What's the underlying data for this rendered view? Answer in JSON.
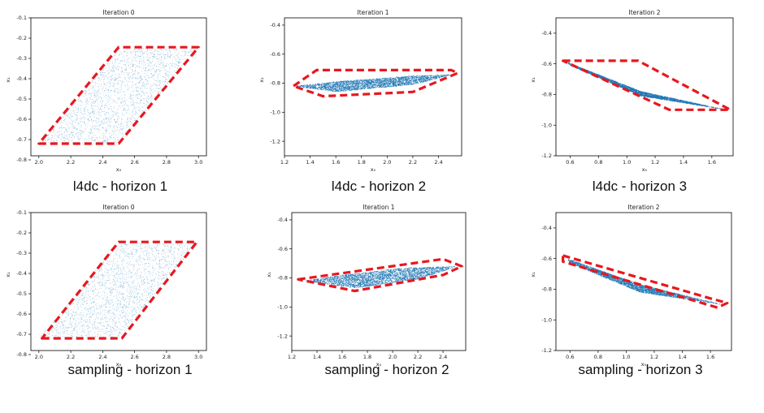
{
  "page": {
    "background": "#ffffff"
  },
  "colors": {
    "points": "#1f77b4",
    "polygon": "#e8171f",
    "axes": "#000000"
  },
  "chart_data": [
    {
      "type": "scatter",
      "title": "Iteration 0",
      "xlabel": "x₀",
      "ylabel": "x₁",
      "caption": "l4dc - horizon 1",
      "xlim": [
        1.95,
        3.05
      ],
      "ylim": [
        -0.78,
        -0.1
      ],
      "xticks": [
        "2.0",
        "2.2",
        "2.4",
        "2.6",
        "2.8",
        "3.0"
      ],
      "xtick_values": [
        2.0,
        2.2,
        2.4,
        2.6,
        2.8,
        3.0
      ],
      "yticks": [
        "-0.1",
        "-0.2",
        "-0.3",
        "-0.4",
        "-0.5",
        "-0.6",
        "-0.7",
        "-0.8"
      ],
      "ytick_values": [
        -0.1,
        -0.2,
        -0.3,
        -0.4,
        -0.5,
        -0.6,
        -0.7,
        -0.8
      ],
      "scatter_region": [
        [
          2.0,
          -0.72
        ],
        [
          2.5,
          -0.72
        ],
        [
          3.0,
          -0.25
        ],
        [
          2.5,
          -0.25
        ]
      ],
      "scatter_density": "sparse",
      "polygon": [
        [
          2.0,
          -0.72
        ],
        [
          2.5,
          -0.72
        ],
        [
          3.0,
          -0.245
        ],
        [
          2.5,
          -0.245
        ]
      ],
      "grid": false
    },
    {
      "type": "scatter",
      "title": "Iteration 1",
      "xlabel": "x₀",
      "ylabel": "x₁",
      "caption": "l4dc - horizon 2",
      "xlim": [
        1.2,
        2.58
      ],
      "ylim": [
        -1.3,
        -0.35
      ],
      "xticks": [
        "1.2",
        "1.4",
        "1.6",
        "1.8",
        "2.0",
        "2.2",
        "2.4"
      ],
      "xtick_values": [
        1.2,
        1.4,
        1.6,
        1.8,
        2.0,
        2.2,
        2.4
      ],
      "yticks": [
        "-0.4",
        "-0.6",
        "-0.8",
        "-1.0",
        "-1.2"
      ],
      "ytick_values": [
        -0.4,
        -0.6,
        -0.8,
        -1.0,
        -1.2
      ],
      "scatter_region": [
        [
          1.27,
          -0.82
        ],
        [
          1.6,
          -0.86
        ],
        [
          2.2,
          -0.81
        ],
        [
          2.52,
          -0.74
        ],
        [
          2.2,
          -0.75
        ],
        [
          1.6,
          -0.79
        ]
      ],
      "scatter_density": "dense",
      "polygon": [
        [
          1.27,
          -0.82
        ],
        [
          1.45,
          -0.71
        ],
        [
          2.5,
          -0.71
        ],
        [
          2.55,
          -0.73
        ],
        [
          2.2,
          -0.86
        ],
        [
          1.5,
          -0.89
        ]
      ],
      "grid": false
    },
    {
      "type": "scatter",
      "title": "Iteration 2",
      "xlabel": "x₀",
      "ylabel": "x₁",
      "caption": "l4dc - horizon 3",
      "xlim": [
        0.5,
        1.75
      ],
      "ylim": [
        -1.2,
        -0.3
      ],
      "xticks": [
        "0.6",
        "0.8",
        "1.0",
        "1.2",
        "1.4",
        "1.6"
      ],
      "xtick_values": [
        0.6,
        0.8,
        1.0,
        1.2,
        1.4,
        1.6
      ],
      "yticks": [
        "-0.4",
        "-0.6",
        "-0.8",
        "-1.0",
        "-1.2"
      ],
      "ytick_values": [
        -0.4,
        -0.6,
        -0.8,
        -1.0,
        -1.2
      ],
      "scatter_region": [
        [
          0.58,
          -0.59
        ],
        [
          1.1,
          -0.78
        ],
        [
          1.7,
          -0.9
        ],
        [
          1.1,
          -0.81
        ],
        [
          0.6,
          -0.61
        ]
      ],
      "scatter_density": "dense",
      "polygon": [
        [
          0.55,
          -0.58
        ],
        [
          1.08,
          -0.58
        ],
        [
          1.73,
          -0.9
        ],
        [
          1.3,
          -0.9
        ]
      ],
      "grid": false
    },
    {
      "type": "scatter",
      "title": "Iteration 0",
      "xlabel": "x₀",
      "ylabel": "x₁",
      "caption": "sampling - horizon 1",
      "xlim": [
        1.95,
        3.05
      ],
      "ylim": [
        -0.78,
        -0.1
      ],
      "xticks": [
        "2.0",
        "2.2",
        "2.4",
        "2.6",
        "2.8",
        "3.0"
      ],
      "xtick_values": [
        2.0,
        2.2,
        2.4,
        2.6,
        2.8,
        3.0
      ],
      "yticks": [
        "-0.1",
        "-0.2",
        "-0.3",
        "-0.4",
        "-0.5",
        "-0.6",
        "-0.7",
        "-0.8"
      ],
      "ytick_values": [
        -0.1,
        -0.2,
        -0.3,
        -0.4,
        -0.5,
        -0.6,
        -0.7,
        -0.8
      ],
      "scatter_region": [
        [
          2.0,
          -0.72
        ],
        [
          2.5,
          -0.72
        ],
        [
          3.0,
          -0.25
        ],
        [
          2.5,
          -0.25
        ]
      ],
      "scatter_density": "sparse",
      "polygon": [
        [
          2.02,
          -0.72
        ],
        [
          2.52,
          -0.72
        ],
        [
          2.99,
          -0.245
        ],
        [
          2.5,
          -0.245
        ]
      ],
      "grid": false
    },
    {
      "type": "scatter",
      "title": "Iteration 1",
      "xlabel": "x₀",
      "ylabel": "x₁",
      "caption": "sampling - horizon 2",
      "xlim": [
        1.2,
        2.58
      ],
      "ylim": [
        -1.3,
        -0.35
      ],
      "xticks": [
        "1.2",
        "1.4",
        "1.6",
        "1.8",
        "2.0",
        "2.2",
        "2.4"
      ],
      "xtick_values": [
        1.2,
        1.4,
        1.6,
        1.8,
        2.0,
        2.2,
        2.4
      ],
      "yticks": [
        "-0.4",
        "-0.6",
        "-0.8",
        "-1.0",
        "-1.2"
      ],
      "ytick_values": [
        -0.4,
        -0.6,
        -0.8,
        -1.0,
        -1.2
      ],
      "scatter_region": [
        [
          1.3,
          -0.82
        ],
        [
          1.7,
          -0.87
        ],
        [
          2.2,
          -0.81
        ],
        [
          2.52,
          -0.72
        ],
        [
          2.1,
          -0.73
        ],
        [
          1.6,
          -0.78
        ]
      ],
      "scatter_density": "dense",
      "polygon": [
        [
          1.25,
          -0.81
        ],
        [
          2.4,
          -0.67
        ],
        [
          2.55,
          -0.72
        ],
        [
          2.4,
          -0.78
        ],
        [
          1.7,
          -0.89
        ],
        [
          1.25,
          -0.81
        ]
      ],
      "grid": false
    },
    {
      "type": "scatter",
      "title": "Iteration 2",
      "xlabel": "x₀",
      "ylabel": "x₁",
      "caption": "sampling - horizon 3",
      "xlim": [
        0.5,
        1.75
      ],
      "ylim": [
        -1.2,
        -0.3
      ],
      "xticks": [
        "0.6",
        "0.8",
        "1.0",
        "1.2",
        "1.4",
        "1.6"
      ],
      "xtick_values": [
        0.6,
        0.8,
        1.0,
        1.2,
        1.4,
        1.6
      ],
      "yticks": [
        "-0.4",
        "-0.6",
        "-0.8",
        "-1.0",
        "-1.2"
      ],
      "ytick_values": [
        -0.4,
        -0.6,
        -0.8,
        -1.0,
        -1.2
      ],
      "scatter_region": [
        [
          0.58,
          -0.6
        ],
        [
          1.1,
          -0.77
        ],
        [
          1.68,
          -0.9
        ],
        [
          1.1,
          -0.82
        ],
        [
          0.6,
          -0.63
        ]
      ],
      "scatter_density": "dense",
      "polygon": [
        [
          0.55,
          -0.58
        ],
        [
          1.6,
          -0.86
        ],
        [
          1.72,
          -0.89
        ],
        [
          1.65,
          -0.92
        ],
        [
          0.55,
          -0.62
        ]
      ],
      "grid": false
    }
  ]
}
